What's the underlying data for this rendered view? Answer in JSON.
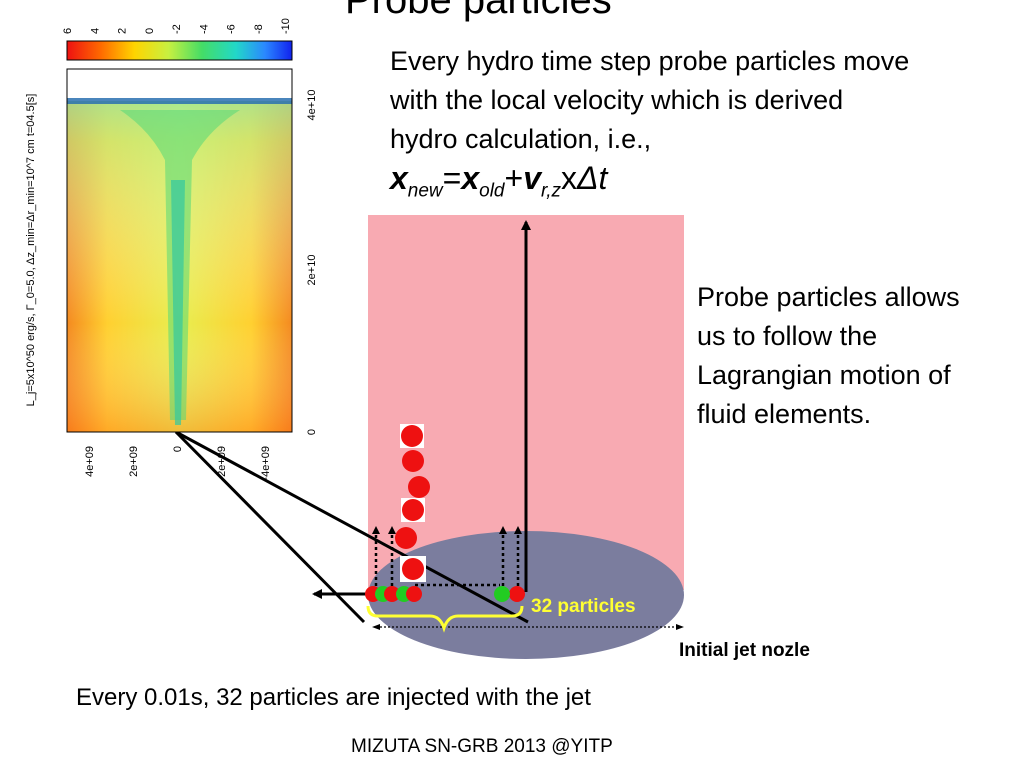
{
  "slide": {
    "title": "Probe particles",
    "description_lines": [
      "Every hydro time step probe particles move",
      "with the local velocity which is derived",
      "hydro calculation, i.e.,"
    ],
    "equation": {
      "x_new": "x",
      "x_new_sub": "new",
      "equals": "=",
      "x_old": "x",
      "x_old_sub": "old",
      "plus": "+",
      "v": "v",
      "v_sub": "r,z",
      "times": "x",
      "dt": "Δt"
    },
    "side_lines": [
      "Probe particles allows",
      "us to follow the",
      "Lagrangian motion of",
      "fluid elements."
    ],
    "nozzle_label": "Initial jet nozle",
    "particle_count_label": "32 particles",
    "inject_note": "Every 0.01s, 32 particles are injected with the jet",
    "footer": "MIZUTA SN-GRB 2013 @YITP"
  },
  "simulation": {
    "colorbar_ticks": [
      "6",
      "4",
      "2",
      "0",
      "-2",
      "-4",
      "-6",
      "-8",
      "-10"
    ],
    "x_ticks": [
      "4e+09",
      "2e+09",
      "0",
      "-2e+09",
      "-4e+09"
    ],
    "y_ticks": [
      "4e+10",
      "2e+10",
      "0"
    ],
    "side_label": "L_j=5x10^50 erg/s, Γ_0=5.0, Δz_min=Δr_min=10^7 cm t=04.5[s]"
  },
  "colors": {
    "jet_region": "#f8aab2",
    "nozzle": "#7b7d9e",
    "particle_red": "#ee1111",
    "particle_green": "#22cc22",
    "brace": "#ffff33"
  }
}
